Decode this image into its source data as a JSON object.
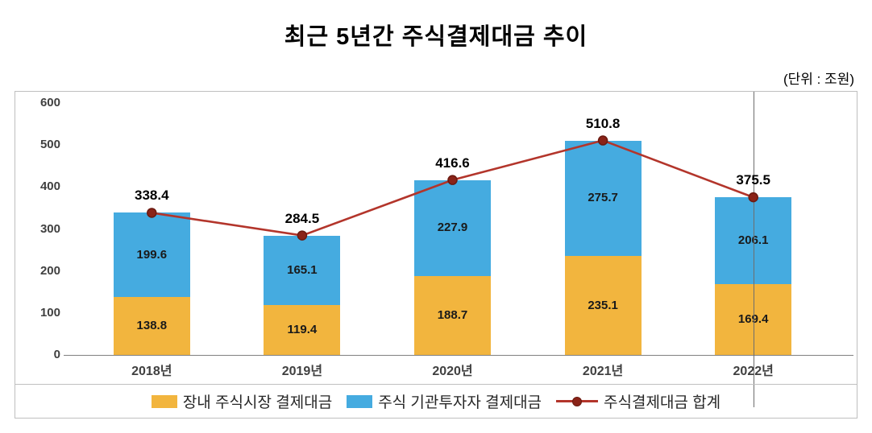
{
  "title": "최근 5년간 주식결제대금 추이",
  "unit_label": "(단위 : 조원)",
  "chart_data": {
    "type": "bar",
    "subtype": "stacked-bars-with-total-line",
    "title": "최근 5년간 주식결제대금 추이",
    "unit": "조원",
    "categories": [
      "2018년",
      "2019년",
      "2020년",
      "2021년",
      "2022년"
    ],
    "series": [
      {
        "name": "장내 주식시장 결제대금",
        "type": "bar",
        "color": "#F2B53E",
        "values": [
          138.8,
          119.4,
          188.7,
          235.1,
          169.4
        ]
      },
      {
        "name": "주식 기관투자자 결제대금",
        "type": "bar",
        "color": "#45ABE0",
        "values": [
          199.6,
          165.1,
          227.9,
          275.7,
          206.1
        ]
      },
      {
        "name": "주식결제대금 합계",
        "type": "line",
        "color": "#B3352B",
        "marker_fill": "#8A2318",
        "marker_stroke": "#6B1A10",
        "values": [
          338.4,
          284.5,
          416.6,
          510.8,
          375.5
        ]
      }
    ],
    "ylim": [
      0,
      600
    ],
    "yticks": [
      0,
      100,
      200,
      300,
      400,
      500,
      600
    ],
    "ytick_step": 100,
    "grid": false,
    "legend_position": "bottom",
    "vertical_guide_category": "2022년"
  }
}
